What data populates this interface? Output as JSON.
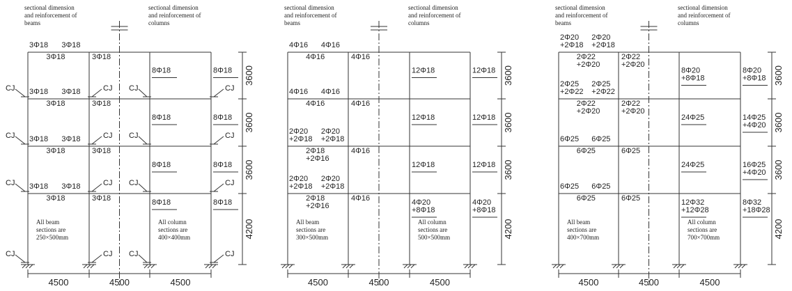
{
  "panels": [
    {
      "header_beams": [
        "sectional dimension",
        "and  reinforcement of",
        "beams"
      ],
      "header_columns": [
        "sectional dimension",
        "and  reinforcement of",
        "columns"
      ],
      "beams": [
        {
          "support_left": [
            "3Φ18"
          ],
          "support_right": [
            "3Φ18"
          ],
          "mid_span1": [
            "3Φ18"
          ],
          "mid_span2": [
            "3Φ18"
          ]
        },
        {
          "support_left": [
            "3Φ18"
          ],
          "support_right": [
            "3Φ18"
          ],
          "mid_span1": [
            "3Φ18"
          ],
          "mid_span2": [
            "3Φ18"
          ]
        },
        {
          "support_left": [
            "3Φ18"
          ],
          "support_right": [
            "3Φ18"
          ],
          "mid_span1": [
            "3Φ18"
          ],
          "mid_span2": [
            "3Φ18"
          ]
        },
        {
          "support_left": [
            "3Φ18"
          ],
          "support_right": [
            "3Φ18"
          ],
          "mid_span1": [
            "3Φ18"
          ],
          "mid_span2": [
            "3Φ18"
          ]
        }
      ],
      "columns": [
        {
          "inner": [
            "8Φ18"
          ],
          "outer": [
            "8Φ18"
          ]
        },
        {
          "inner": [
            "8Φ18"
          ],
          "outer": [
            "8Φ18"
          ]
        },
        {
          "inner": [
            "8Φ18"
          ],
          "outer": [
            "8Φ18"
          ]
        },
        {
          "inner": [
            "8Φ18"
          ],
          "outer": [
            "8Φ18"
          ]
        }
      ],
      "joint_labels": [
        [
          "CJ",
          "CJ",
          "CJ",
          "CJ"
        ],
        [
          "CJ",
          "CJ",
          "CJ",
          "CJ"
        ],
        [
          "CJ",
          "CJ",
          "CJ",
          "CJ"
        ],
        [
          "CJ",
          "CJ",
          "CJ",
          "CJ"
        ]
      ],
      "note_beams": [
        "All beam",
        "sections are",
        "250×500mm"
      ],
      "note_columns": [
        "All column",
        "sections are",
        "400×400mm"
      ],
      "dims_x": [
        "4500",
        "4500",
        "4500"
      ],
      "dims_y": [
        "3600",
        "3600",
        "3600",
        "4200"
      ]
    },
    {
      "header_beams": [
        "sectional dimension",
        "and  reinforcement of",
        "beams"
      ],
      "header_columns": [
        "sectional dimension",
        "and  reinforcement of",
        "columns"
      ],
      "beams": [
        {
          "support_left": [
            "4Φ16"
          ],
          "support_right": [
            "4Φ16"
          ],
          "mid_span1": [
            "4Φ16"
          ],
          "mid_span2": [
            "4Φ16"
          ]
        },
        {
          "support_left": [
            "4Φ16"
          ],
          "support_right": [
            "4Φ16"
          ],
          "mid_span1": [
            "4Φ16"
          ],
          "mid_span2": [
            "4Φ16"
          ]
        },
        {
          "support_left": [
            "2Φ20",
            "+2Φ18"
          ],
          "support_right": [
            "2Φ20",
            "+2Φ18"
          ],
          "mid_span1": [
            "2Φ18",
            "+2Φ16"
          ],
          "mid_span2": [
            "4Φ16"
          ]
        },
        {
          "support_left": [
            "2Φ20",
            "+2Φ18"
          ],
          "support_right": [
            "2Φ20",
            "+2Φ18"
          ],
          "mid_span1": [
            "2Φ18",
            "+2Φ16"
          ],
          "mid_span2": [
            "4Φ16"
          ]
        }
      ],
      "columns": [
        {
          "inner": [
            "12Φ18"
          ],
          "outer": [
            "12Φ18"
          ]
        },
        {
          "inner": [
            "12Φ18"
          ],
          "outer": [
            "12Φ18"
          ]
        },
        {
          "inner": [
            "12Φ18"
          ],
          "outer": [
            "12Φ18"
          ]
        },
        {
          "inner": [
            "4Φ20",
            "+8Φ18"
          ],
          "outer": [
            "4Φ20",
            "+8Φ18"
          ]
        }
      ],
      "note_beams": [
        "All beam",
        "sections are",
        "300×500mm"
      ],
      "note_columns": [
        "All column",
        "sections are",
        "500×500mm"
      ],
      "dims_x": [
        "4500",
        "4500",
        "4500"
      ],
      "dims_y": [
        "3600",
        "3600",
        "3600",
        "4200"
      ]
    },
    {
      "header_beams": [
        "sectional dimension",
        "and  reinforcement of",
        "beams"
      ],
      "header_columns": [
        "sectional dimension",
        "and  reinforcement of",
        "columns"
      ],
      "beams": [
        {
          "support_left": [
            "2Φ20",
            "+2Φ18"
          ],
          "support_right": [
            "2Φ20",
            "+2Φ18"
          ],
          "mid_span1": [
            "2Φ22",
            "+2Φ20"
          ],
          "mid_span2": [
            "2Φ22",
            "+2Φ20"
          ]
        },
        {
          "support_left": [
            "2Φ25",
            "+2Φ22"
          ],
          "support_right": [
            "2Φ25",
            "+2Φ22"
          ],
          "mid_span1": [
            "2Φ22",
            "+2Φ20"
          ],
          "mid_span2": [
            "2Φ22",
            "+2Φ20"
          ]
        },
        {
          "support_left": [
            "6Φ25"
          ],
          "support_right": [
            "6Φ25"
          ],
          "mid_span1": [
            "6Φ25"
          ],
          "mid_span2": [
            "6Φ25"
          ]
        },
        {
          "support_left": [
            "6Φ25"
          ],
          "support_right": [
            "6Φ25"
          ],
          "mid_span1": [
            "6Φ25"
          ],
          "mid_span2": [
            "6Φ25"
          ]
        }
      ],
      "columns": [
        {
          "inner": [
            "8Φ20",
            "+8Φ18"
          ],
          "outer": [
            "8Φ20",
            "+8Φ18"
          ]
        },
        {
          "inner": [
            "24Φ25"
          ],
          "outer": [
            "14Φ25",
            "+4Φ20"
          ]
        },
        {
          "inner": [
            "24Φ25"
          ],
          "outer": [
            "16Φ25",
            "+4Φ20"
          ]
        },
        {
          "inner": [
            "12Φ32",
            "+12Φ28"
          ],
          "outer": [
            "8Φ32",
            "+18Φ28"
          ]
        }
      ],
      "note_beams": [
        "All beam",
        "sections are",
        "400×700mm"
      ],
      "note_columns": [
        "All column",
        "sections are",
        "700×700mm"
      ],
      "dims_x": [
        "4500",
        "4500",
        "4500"
      ],
      "dims_y": [
        "3600",
        "3600",
        "3600",
        "4200"
      ]
    }
  ]
}
